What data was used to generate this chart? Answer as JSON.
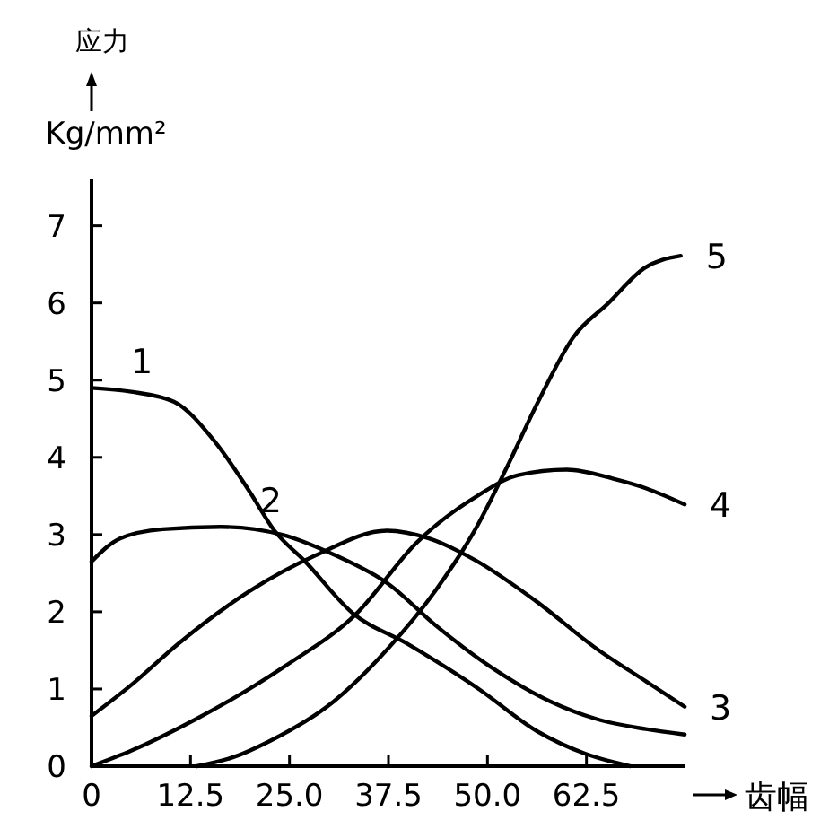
{
  "chart_data": {
    "type": "line",
    "xlabel": "齿幅",
    "ylabel": "应力\nKg/mm²",
    "xlim": [
      0,
      75
    ],
    "ylim": [
      0,
      7.6
    ],
    "xticks": [
      0,
      {
        "value": 12.5,
        "label": "12.5"
      },
      {
        "value": 25,
        "label": "25.0"
      },
      {
        "value": 37.5,
        "label": "37.5"
      },
      {
        "value": 50,
        "label": "50.0"
      },
      {
        "value": 62.5,
        "label": "62.5"
      }
    ],
    "yticks": [
      0,
      1,
      2,
      3,
      4,
      5,
      6,
      7
    ],
    "grid": false,
    "marker": "none",
    "line_style": "solid",
    "series": [
      {
        "name": "1",
        "color": "#000000",
        "x": [
          0,
          5,
          10.4,
          15.6,
          20,
          23.1,
          26.9,
          33,
          39.8,
          48.9,
          56.3,
          62.4,
          66,
          68
        ],
        "values": [
          4.9,
          4.85,
          4.72,
          4.2,
          3.55,
          3.05,
          2.66,
          1.98,
          1.59,
          1.0,
          0.45,
          0.16,
          0.05,
          0
        ]
      },
      {
        "name": "2",
        "color": "#000000",
        "x": [
          0,
          3.6,
          9,
          16.3,
          24,
          30.8,
          37.5,
          43.5,
          50.2,
          57.9,
          63.8,
          70,
          74.9
        ],
        "values": [
          2.65,
          2.95,
          3.07,
          3.1,
          3.0,
          2.73,
          2.36,
          1.82,
          1.3,
          0.84,
          0.61,
          0.48,
          0.41
        ]
      },
      {
        "name": "3",
        "color": "#000000",
        "x": [
          0,
          5,
          11,
          20,
          28.3,
          37.3,
          42.6,
          48.6,
          56.1,
          63.8,
          70,
          74.9
        ],
        "values": [
          0.65,
          1.05,
          1.59,
          2.27,
          2.73,
          3.05,
          2.95,
          2.66,
          2.14,
          1.52,
          1.1,
          0.77
        ]
      },
      {
        "name": "4",
        "color": "#000000",
        "x": [
          0,
          5,
          13.2,
          24.5,
          33.5,
          41,
          48.7,
          53.9,
          60,
          66,
          70,
          74.9
        ],
        "values": [
          0,
          0.2,
          0.61,
          1.3,
          1.98,
          2.89,
          3.5,
          3.77,
          3.84,
          3.72,
          3.6,
          3.39
        ]
      },
      {
        "name": "5",
        "color": "#000000",
        "x": [
          13.3,
          18,
          22.4,
          30.6,
          37.4,
          43.4,
          48.7,
          52.4,
          56.3,
          60.8,
          65.3,
          69.8,
          74.4
        ],
        "values": [
          0,
          0.12,
          0.32,
          0.84,
          1.52,
          2.27,
          3.11,
          3.86,
          4.7,
          5.55,
          6.0,
          6.45,
          6.61
        ]
      }
    ]
  }
}
